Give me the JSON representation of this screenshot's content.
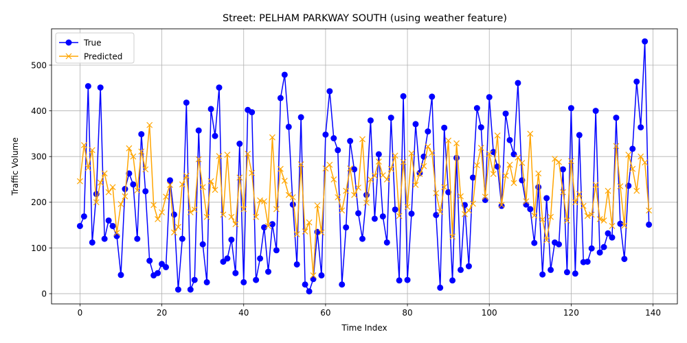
{
  "chart_data": {
    "type": "line",
    "title": "Street: PELHAM PARKWAY SOUTH (using weather feature)",
    "xlabel": "Time Index",
    "ylabel": "Traffic Volume",
    "xlim": [
      -6.95,
      145.95
    ],
    "ylim": [
      -22.4,
      579.5
    ],
    "xticks": [
      0,
      20,
      40,
      60,
      80,
      100,
      120,
      140
    ],
    "yticks": [
      0,
      100,
      200,
      300,
      400,
      500
    ],
    "grid": true,
    "legend": "top-left",
    "x": [
      0,
      1,
      2,
      3,
      4,
      5,
      6,
      7,
      8,
      9,
      10,
      11,
      12,
      13,
      14,
      15,
      16,
      17,
      18,
      19,
      20,
      21,
      22,
      23,
      24,
      25,
      26,
      27,
      28,
      29,
      30,
      31,
      32,
      33,
      34,
      35,
      36,
      37,
      38,
      39,
      40,
      41,
      42,
      43,
      44,
      45,
      46,
      47,
      48,
      49,
      50,
      51,
      52,
      53,
      54,
      55,
      56,
      57,
      58,
      59,
      60,
      61,
      62,
      63,
      64,
      65,
      66,
      67,
      68,
      69,
      70,
      71,
      72,
      73,
      74,
      75,
      76,
      77,
      78,
      79,
      80,
      81,
      82,
      83,
      84,
      85,
      86,
      87,
      88,
      89,
      90,
      91,
      92,
      93,
      94,
      95,
      96,
      97,
      98,
      99,
      100,
      101,
      102,
      103,
      104,
      105,
      106,
      107,
      108,
      109,
      110,
      111,
      112,
      113,
      114,
      115,
      116,
      117,
      118,
      119,
      120,
      121,
      122,
      123,
      124,
      125,
      126,
      127,
      128,
      129,
      130,
      131,
      132,
      133,
      134,
      135,
      136,
      137,
      138,
      139
    ],
    "series": [
      {
        "name": "True",
        "color": "#0000ff",
        "marker": "circle",
        "values": [
          148,
          169,
          454,
          112,
          218,
          451,
          120,
          160,
          148,
          126,
          41,
          229,
          263,
          239,
          120,
          349,
          224,
          72,
          40,
          45,
          65,
          58,
          248,
          173,
          9,
          120,
          418,
          9,
          30,
          357,
          108,
          25,
          404,
          345,
          451,
          70,
          77,
          118,
          45,
          328,
          25,
          402,
          397,
          30,
          77,
          145,
          48,
          152,
          95,
          428,
          479,
          365,
          195,
          64,
          386,
          20,
          5,
          32,
          135,
          40,
          348,
          443,
          340,
          314,
          20,
          145,
          334,
          272,
          176,
          120,
          216,
          379,
          164,
          305,
          169,
          112,
          385,
          184,
          29,
          432,
          30,
          175,
          371,
          264,
          300,
          355,
          431,
          172,
          13,
          363,
          222,
          29,
          297,
          52,
          194,
          60,
          254,
          406,
          364,
          205,
          430,
          310,
          278,
          192,
          394,
          336,
          305,
          461,
          248,
          195,
          185,
          111,
          233,
          42,
          209,
          52,
          112,
          108,
          272,
          47,
          406,
          44,
          347,
          69,
          70,
          99,
          400,
          90,
          102,
          132,
          123,
          385,
          153,
          76,
          236,
          317,
          464,
          364,
          552,
          151
        ]
      },
      {
        "name": "Predicted",
        "color": "#ffa500",
        "marker": "x",
        "values": [
          246,
          325,
          275,
          314,
          200,
          243,
          263,
          222,
          233,
          133,
          196,
          213,
          318,
          300,
          226,
          311,
          272,
          369,
          194,
          163,
          178,
          212,
          238,
          134,
          146,
          239,
          258,
          178,
          184,
          294,
          233,
          168,
          246,
          227,
          301,
          173,
          304,
          168,
          152,
          254,
          185,
          306,
          264,
          168,
          204,
          202,
          148,
          342,
          185,
          273,
          247,
          216,
          211,
          130,
          283,
          136,
          156,
          40,
          193,
          134,
          274,
          282,
          250,
          211,
          182,
          225,
          274,
          216,
          232,
          338,
          199,
          250,
          258,
          289,
          259,
          250,
          273,
          302,
          170,
          288,
          190,
          307,
          238,
          262,
          279,
          322,
          308,
          220,
          179,
          233,
          335,
          125,
          329,
          213,
          174,
          182,
          197,
          281,
          319,
          212,
          306,
          262,
          346,
          194,
          258,
          282,
          242,
          298,
          286,
          202,
          350,
          171,
          263,
          162,
          117,
          168,
          295,
          288,
          222,
          160,
          290,
          200,
          218,
          192,
          170,
          173,
          238,
          163,
          160,
          225,
          148,
          323,
          235,
          149,
          304,
          273,
          225,
          300,
          287,
          182
        ]
      }
    ]
  }
}
